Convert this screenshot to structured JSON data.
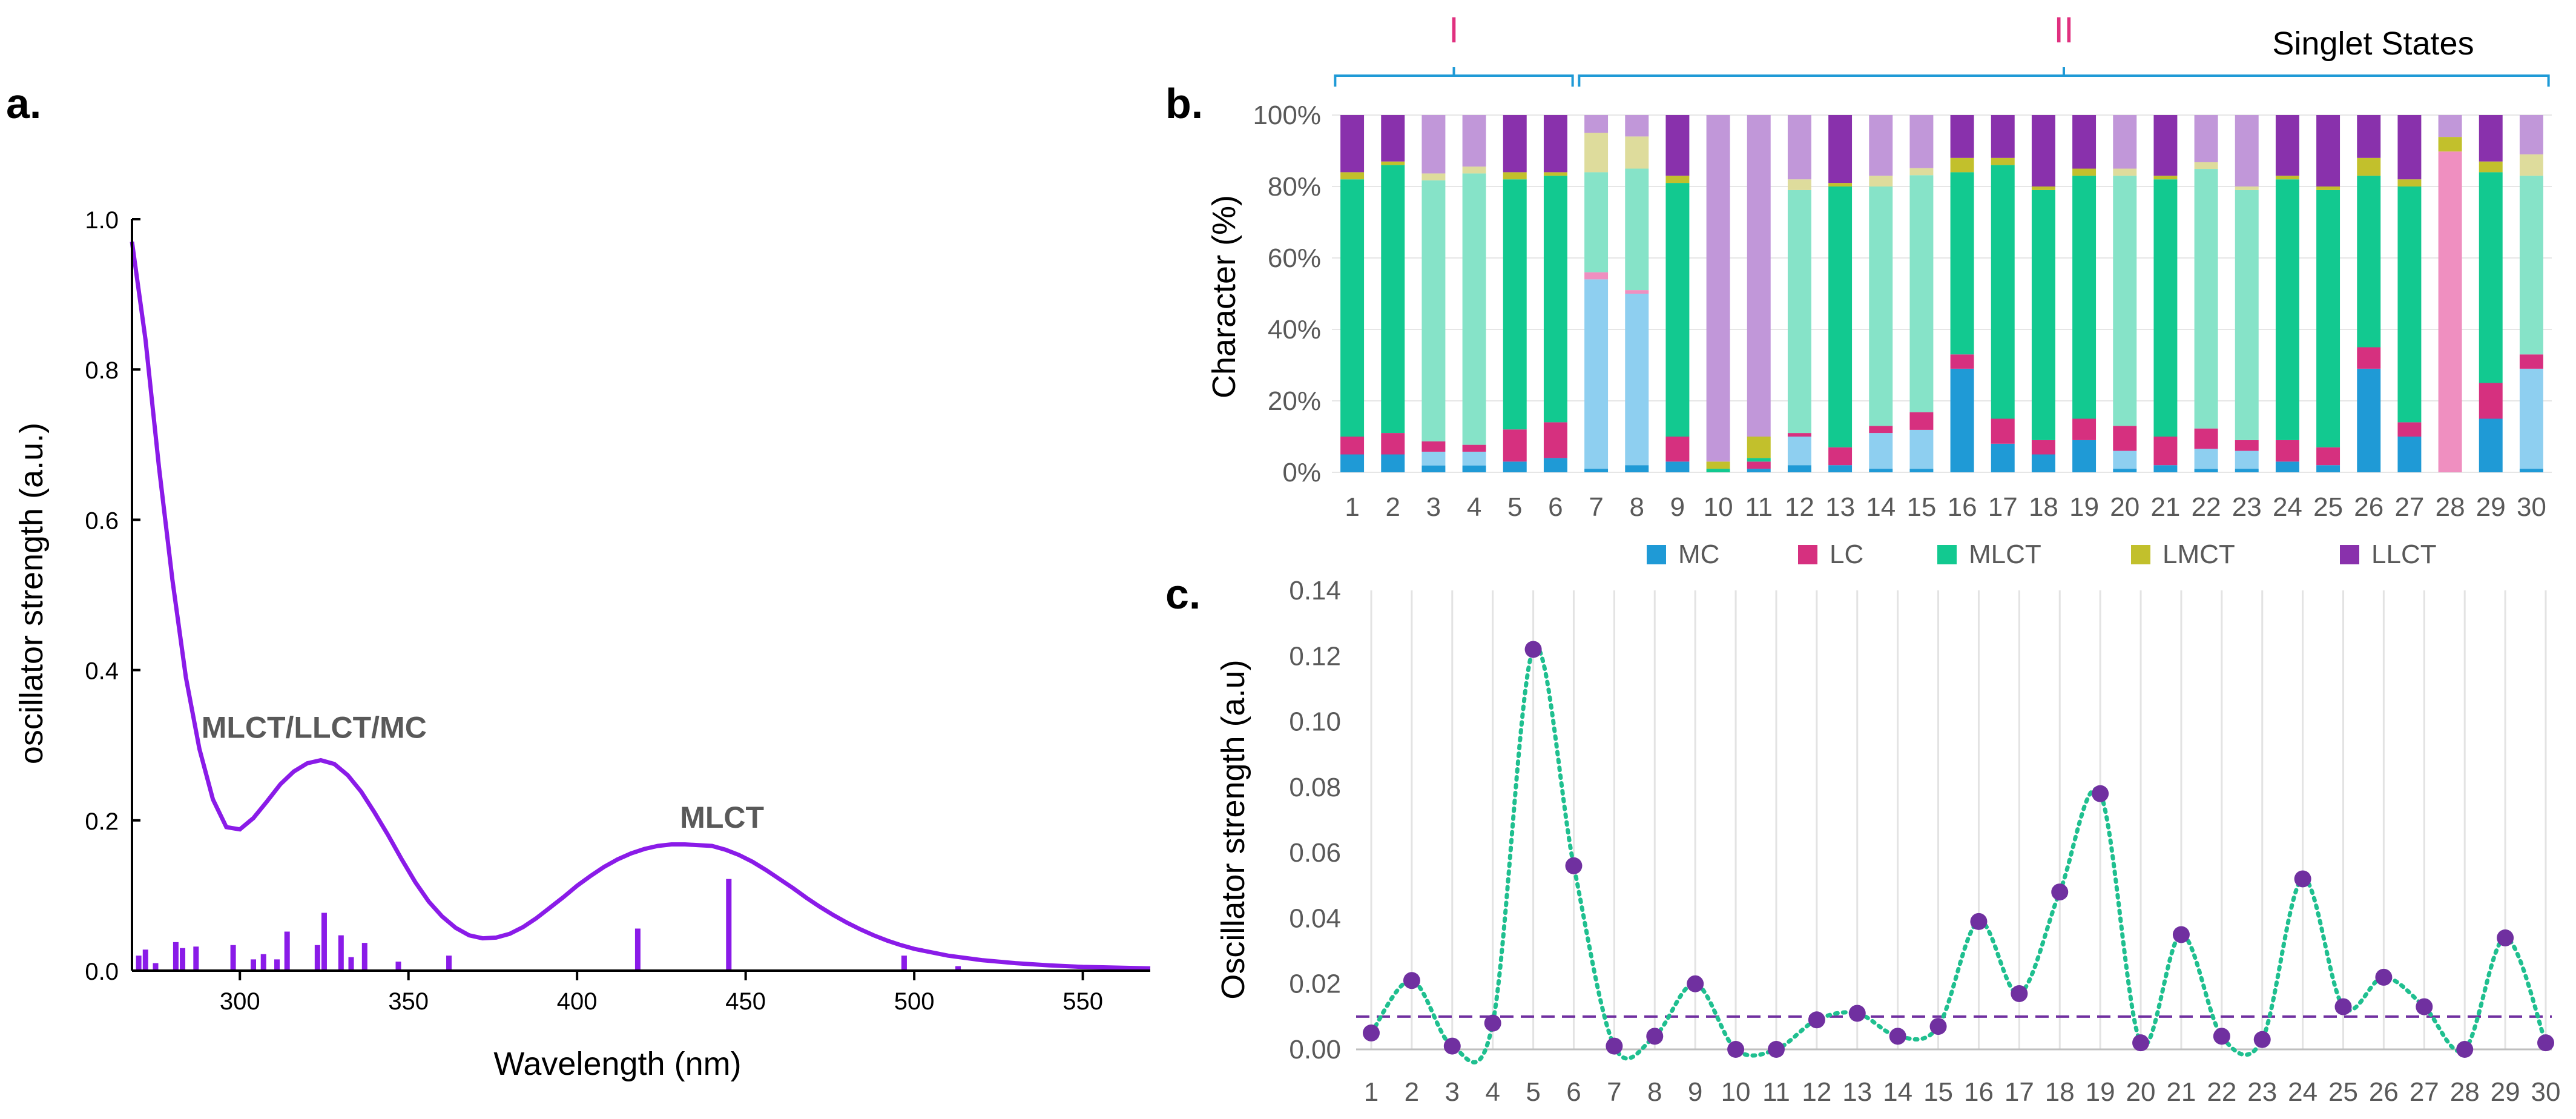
{
  "chart_data": [
    {
      "panel": "a.",
      "type": "line",
      "xlabel": "Wavelength (nm)",
      "ylabel": "oscillator strength (a.u.)",
      "xlim": [
        268,
        570
      ],
      "ylim": [
        0,
        1.0
      ],
      "xticks": [
        "300",
        "350",
        "400",
        "450",
        "500",
        "550"
      ],
      "yticks": [
        "0.0",
        "0.2",
        "0.4",
        "0.6",
        "0.8",
        "1.0"
      ],
      "colors": {
        "curve": "#8a1be8",
        "sticks": "#8a1be8"
      },
      "annotations": [
        {
          "text": "MLCT/LLCT/MC",
          "x": 322,
          "y": 0.31
        },
        {
          "text": "MLCT",
          "x": 443,
          "y": 0.19
        }
      ],
      "curve": {
        "x": [
          268,
          272,
          276,
          280,
          284,
          288,
          292,
          296,
          300,
          304,
          308,
          312,
          316,
          320,
          324,
          328,
          332,
          336,
          340,
          344,
          348,
          352,
          356,
          360,
          364,
          368,
          372,
          376,
          380,
          384,
          388,
          392,
          396,
          400,
          404,
          408,
          412,
          416,
          420,
          424,
          428,
          432,
          436,
          440,
          444,
          448,
          452,
          456,
          460,
          464,
          468,
          472,
          476,
          480,
          484,
          488,
          492,
          496,
          500,
          510,
          520,
          530,
          540,
          550,
          560,
          570
        ],
        "y": [
          0.97,
          0.84,
          0.67,
          0.52,
          0.39,
          0.295,
          0.228,
          0.191,
          0.188,
          0.203,
          0.225,
          0.248,
          0.265,
          0.276,
          0.28,
          0.275,
          0.26,
          0.238,
          0.21,
          0.18,
          0.148,
          0.118,
          0.092,
          0.072,
          0.057,
          0.047,
          0.043,
          0.044,
          0.049,
          0.058,
          0.07,
          0.084,
          0.098,
          0.113,
          0.126,
          0.138,
          0.148,
          0.156,
          0.162,
          0.166,
          0.168,
          0.168,
          0.167,
          0.166,
          0.161,
          0.154,
          0.145,
          0.134,
          0.122,
          0.11,
          0.097,
          0.085,
          0.074,
          0.064,
          0.055,
          0.047,
          0.04,
          0.034,
          0.029,
          0.02,
          0.014,
          0.01,
          0.007,
          0.005,
          0.004,
          0.003
        ]
      },
      "sticks": {
        "x": [
          270,
          272,
          275,
          281,
          283,
          287,
          298,
          304,
          307,
          311,
          314,
          323,
          325,
          330,
          333,
          337,
          347,
          362,
          418,
          445,
          497,
          513
        ],
        "y": [
          0.02,
          0.028,
          0.01,
          0.038,
          0.03,
          0.032,
          0.034,
          0.015,
          0.022,
          0.015,
          0.052,
          0.034,
          0.077,
          0.047,
          0.018,
          0.037,
          0.012,
          0.02,
          0.056,
          0.122,
          0.02,
          0.006
        ]
      }
    },
    {
      "panel": "b.",
      "type": "bar",
      "stacked": true,
      "title": "Singlet States",
      "ylabel": "Character (%)",
      "ylim": [
        0,
        100
      ],
      "yticks": [
        "0%",
        "20%",
        "40%",
        "60%",
        "80%",
        "100%"
      ],
      "groups": [
        {
          "label": "I",
          "from": "1",
          "to": "6"
        },
        {
          "label": "II",
          "from": "7",
          "to": "30"
        }
      ],
      "categories": [
        "1",
        "2",
        "3",
        "4",
        "5",
        "6",
        "7",
        "8",
        "9",
        "10",
        "11",
        "12",
        "13",
        "14",
        "15",
        "16",
        "17",
        "18",
        "19",
        "20",
        "21",
        "22",
        "23",
        "24",
        "25",
        "26",
        "27",
        "28",
        "29",
        "30"
      ],
      "legend": [
        {
          "name": "MC",
          "color": "#1f9ad6"
        },
        {
          "name": "LC",
          "color": "#d6307f"
        },
        {
          "name": "MLCT",
          "color": "#12c990"
        },
        {
          "name": "LMCT",
          "color": "#c2c02c"
        },
        {
          "name": "LLCT",
          "color": "#8931ac"
        }
      ],
      "series": [
        {
          "name": "MC",
          "values": [
            5,
            5,
            2,
            2,
            3,
            4,
            1,
            2,
            3,
            0,
            1,
            2,
            2,
            1,
            1,
            29,
            8,
            5,
            9,
            1,
            2,
            1,
            1,
            3,
            2,
            29,
            10,
            0,
            15,
            1
          ],
          "faded": [
            false,
            false,
            true,
            true,
            false,
            false,
            true,
            true,
            false,
            false,
            false,
            true,
            false,
            true,
            true,
            false,
            false,
            false,
            false,
            true,
            false,
            true,
            true,
            false,
            false,
            false,
            false,
            false,
            false,
            true
          ],
          "fadedValues": [
            0,
            0,
            4,
            4,
            0,
            0,
            53,
            48,
            0,
            0,
            0,
            8,
            0,
            10,
            11,
            0,
            0,
            0,
            0,
            5,
            0,
            6,
            5,
            0,
            0,
            0,
            0,
            0,
            0,
            28
          ]
        },
        {
          "name": "LC",
          "values": [
            5,
            6,
            3,
            2,
            9,
            10,
            2,
            1,
            7,
            0,
            2,
            1,
            5,
            2,
            5,
            4,
            7,
            4,
            6,
            7,
            8,
            6,
            3,
            6,
            5,
            6,
            4,
            2,
            10,
            4
          ]
        },
        {
          "name": "MLCT",
          "values": [
            72,
            75,
            76,
            79,
            70,
            69,
            28,
            34,
            71,
            1,
            1,
            68,
            73,
            67,
            67,
            51,
            71,
            70,
            68,
            70,
            72,
            77,
            70,
            73,
            72,
            48,
            66,
            0,
            59,
            50
          ]
        },
        {
          "name": "LMCT",
          "values": [
            2,
            1,
            2,
            2,
            2,
            1,
            11,
            9,
            2,
            2,
            6,
            3,
            1,
            3,
            2,
            4,
            2,
            1,
            2,
            2,
            1,
            2,
            1,
            1,
            1,
            5,
            2,
            4,
            3,
            6
          ]
        },
        {
          "name": "LLCT",
          "values": [
            16,
            13,
            17,
            15,
            16,
            16,
            5,
            6,
            17,
            97,
            90,
            18,
            19,
            17,
            15,
            12,
            12,
            20,
            15,
            15,
            17,
            14,
            20,
            17,
            20,
            12,
            18,
            6,
            13,
            11
          ],
          "faded": [
            false,
            false,
            true,
            true,
            false,
            false,
            true,
            true,
            false,
            true,
            true,
            true,
            false,
            true,
            true,
            false,
            false,
            false,
            false,
            true,
            false,
            true,
            true,
            false,
            false,
            false,
            false,
            true,
            false,
            true
          ]
        }
      ],
      "extra": {
        "28": {
          "name": "LC (light)",
          "value": 88
        }
      }
    },
    {
      "panel": "c.",
      "type": "scatter",
      "ylabel": "Oscillator strength (a.u)",
      "ylim": [
        0,
        0.14
      ],
      "yticks": [
        "0.00",
        "0.02",
        "0.04",
        "0.06",
        "0.08",
        "0.10",
        "0.12",
        "0.14"
      ],
      "categories": [
        "1",
        "2",
        "3",
        "4",
        "5",
        "6",
        "7",
        "8",
        "9",
        "10",
        "11",
        "12",
        "13",
        "14",
        "15",
        "16",
        "17",
        "18",
        "19",
        "20",
        "21",
        "22",
        "23",
        "24",
        "25",
        "26",
        "27",
        "28",
        "29",
        "30"
      ],
      "values": [
        0.005,
        0.021,
        0.001,
        0.008,
        0.122,
        0.056,
        0.001,
        0.004,
        0.02,
        0.0,
        0.0,
        0.009,
        0.011,
        0.004,
        0.007,
        0.039,
        0.017,
        0.048,
        0.078,
        0.002,
        0.035,
        0.004,
        0.003,
        0.052,
        0.013,
        0.022,
        0.013,
        0.0,
        0.034,
        0.002
      ],
      "threshold": 0.01,
      "colors": {
        "points": "#7030a0",
        "line": "#1fbf8f",
        "threshold": "#7030a0"
      }
    }
  ]
}
